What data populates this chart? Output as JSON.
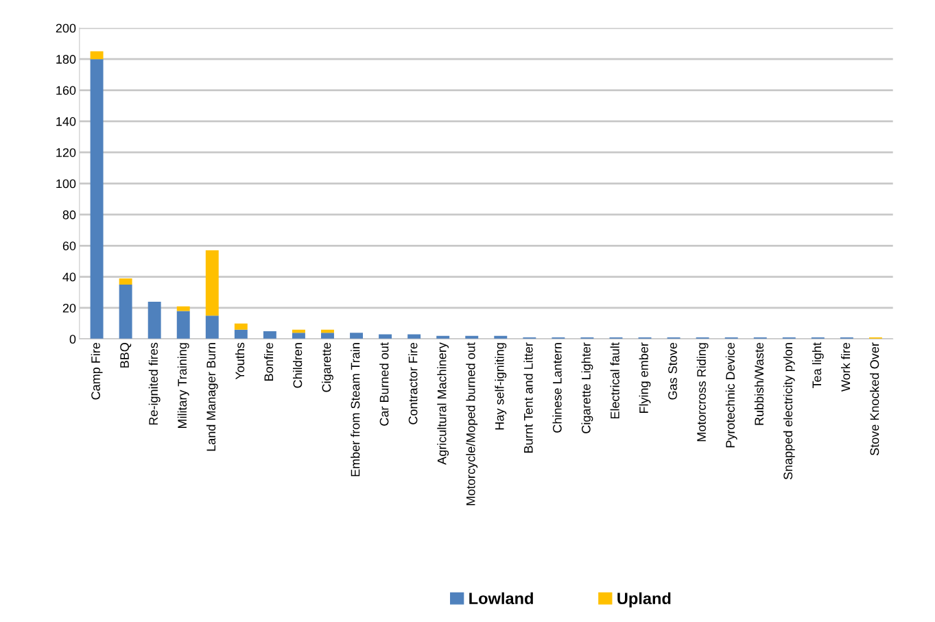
{
  "chart_data": {
    "type": "bar",
    "stacked": true,
    "categories": [
      "Camp Fire",
      "BBQ",
      "Re-ignited fires",
      "Military Training",
      "Land Manager Burn",
      "Youths",
      "Bonfire",
      "Children",
      "Cigarette",
      "Ember from Steam Train",
      "Car Burned out",
      "Contractor Fire",
      "Agricultural Machinery",
      "Motorcycle/Moped burned out",
      "Hay self-igniting",
      "Burnt Tent and Litter",
      "Chinese Lantern",
      "Cigarette Lighter",
      "Electrical fault",
      "Flying ember",
      "Gas Stove",
      "Motorcross Riding",
      "Pyrotechnic Device",
      "Rubbish/Waste",
      "Snapped electricity pylon",
      "Tea light",
      "Work fire",
      "Stove Knocked Over"
    ],
    "series": [
      {
        "name": "Lowland",
        "color": "#4f81bd",
        "values": [
          180,
          35,
          24,
          18,
          15,
          6,
          5,
          4,
          4,
          4,
          3,
          3,
          2,
          2,
          2,
          1,
          1,
          1,
          1,
          1,
          1,
          1,
          1,
          1,
          1,
          1,
          1,
          0
        ]
      },
      {
        "name": "Upland",
        "color": "#ffc000",
        "values": [
          5,
          4,
          0,
          3,
          42,
          4,
          0,
          2,
          2,
          0,
          0,
          0,
          0,
          0,
          0,
          0,
          0,
          0,
          0,
          0,
          0,
          0,
          0,
          0,
          0,
          0,
          0,
          1
        ]
      }
    ],
    "ylim": [
      0,
      200
    ],
    "yticks": [
      0,
      20,
      40,
      60,
      80,
      100,
      120,
      140,
      160,
      180,
      200
    ],
    "grid": "y",
    "legend": "bottom"
  }
}
